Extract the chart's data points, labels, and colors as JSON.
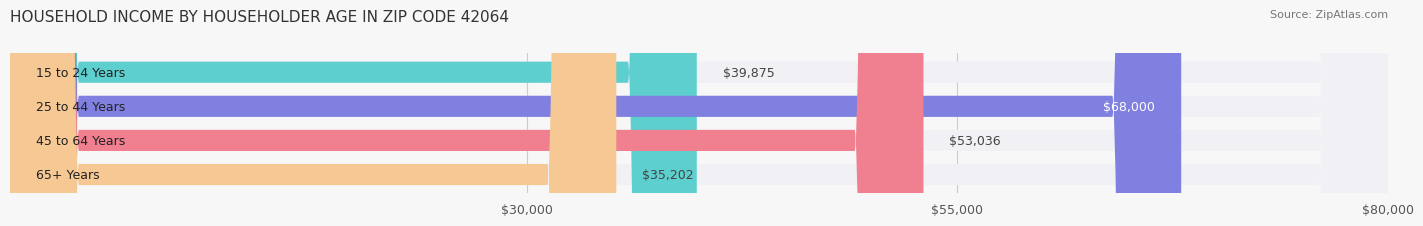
{
  "title": "HOUSEHOLD INCOME BY HOUSEHOLDER AGE IN ZIP CODE 42064",
  "source": "Source: ZipAtlas.com",
  "categories": [
    "15 to 24 Years",
    "25 to 44 Years",
    "45 to 64 Years",
    "65+ Years"
  ],
  "values": [
    39875,
    68000,
    53036,
    35202
  ],
  "bar_colors": [
    "#5ecfcf",
    "#8080e0",
    "#f08090",
    "#f5c894"
  ],
  "bar_bg_color": "#f0f0f5",
  "label_colors": [
    "#555555",
    "#ffffff",
    "#555555",
    "#555555"
  ],
  "xlim": [
    0,
    80000
  ],
  "xticks": [
    30000,
    55000,
    80000
  ],
  "xtick_labels": [
    "$30,000",
    "$55,000",
    "$80,000"
  ],
  "background_color": "#f7f7f7",
  "title_fontsize": 11,
  "source_fontsize": 8,
  "bar_label_fontsize": 9,
  "category_fontsize": 9,
  "tick_fontsize": 9
}
